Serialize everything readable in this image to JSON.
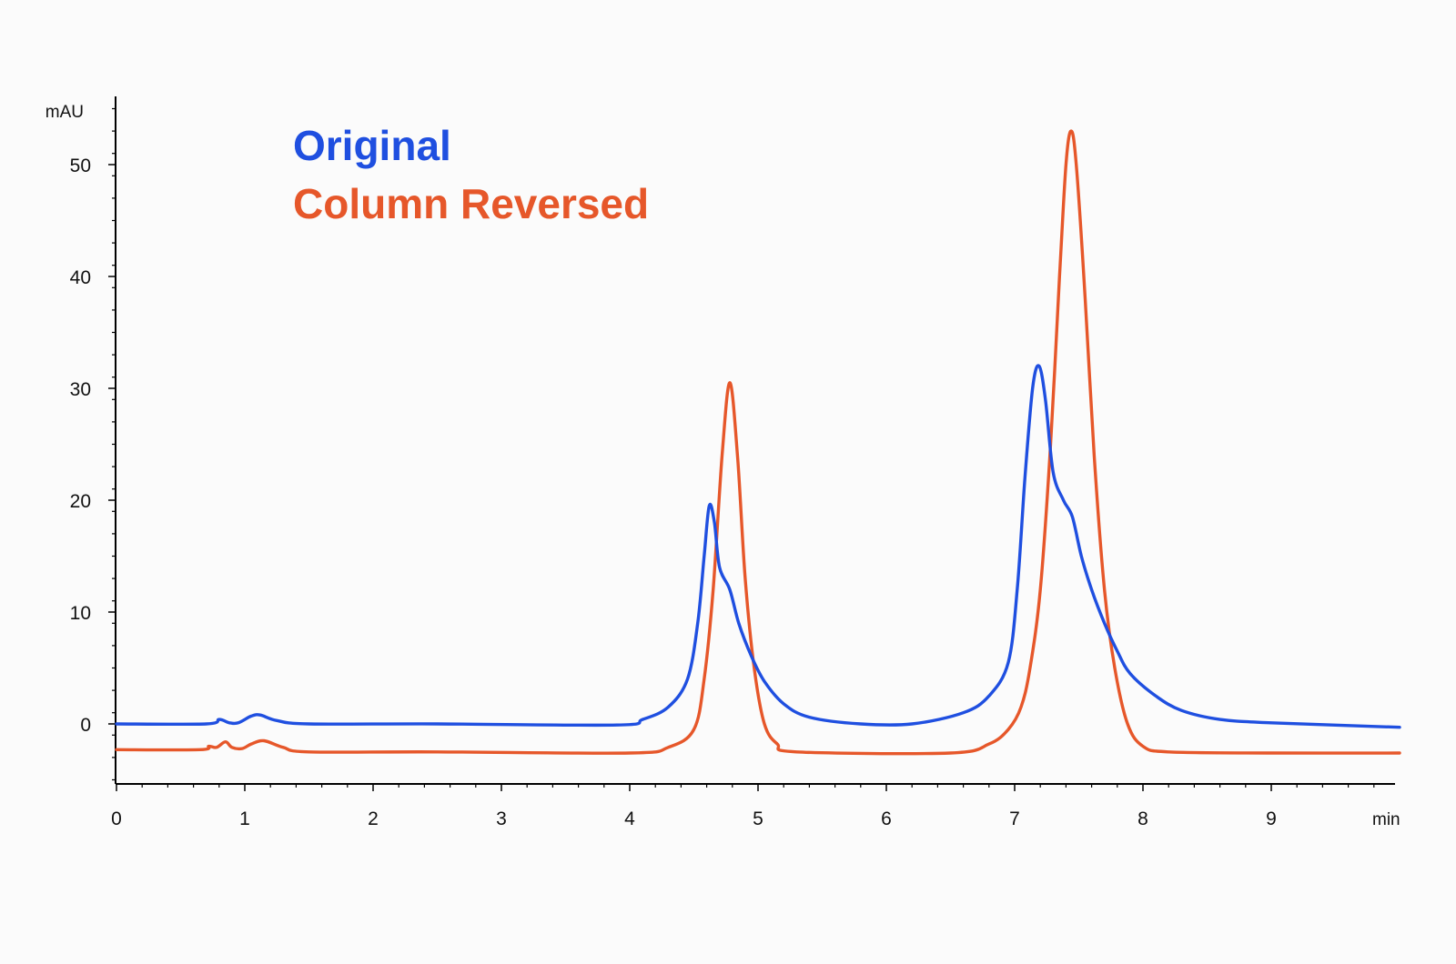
{
  "chart_data": {
    "type": "line",
    "title": "",
    "xlabel": "min",
    "ylabel": "mAU",
    "xlim": [
      0,
      10
    ],
    "ylim": [
      -5.5,
      56
    ],
    "x_ticks": [
      0,
      1,
      2,
      3,
      4,
      5,
      6,
      7,
      8,
      9
    ],
    "y_ticks": [
      0,
      10,
      20,
      30,
      40,
      50
    ],
    "grid": false,
    "legend_placement": "top-left",
    "series": [
      {
        "name": "Original",
        "color": "#1f4fe0",
        "points": [
          [
            0,
            0
          ],
          [
            0.7,
            0
          ],
          [
            0.8,
            0.4
          ],
          [
            0.88,
            0.1
          ],
          [
            0.95,
            0.1
          ],
          [
            1.05,
            0.7
          ],
          [
            1.12,
            0.8
          ],
          [
            1.25,
            0.3
          ],
          [
            1.5,
            0
          ],
          [
            2.5,
            0
          ],
          [
            3.9,
            -0.1
          ],
          [
            4.1,
            0.4
          ],
          [
            4.3,
            1.5
          ],
          [
            4.45,
            4
          ],
          [
            4.53,
            9
          ],
          [
            4.58,
            15
          ],
          [
            4.62,
            19.5
          ],
          [
            4.66,
            18
          ],
          [
            4.7,
            14
          ],
          [
            4.78,
            12
          ],
          [
            4.85,
            9
          ],
          [
            4.95,
            6
          ],
          [
            5.05,
            3.8
          ],
          [
            5.2,
            1.8
          ],
          [
            5.4,
            0.6
          ],
          [
            5.8,
            0
          ],
          [
            6.2,
            0
          ],
          [
            6.6,
            1
          ],
          [
            6.8,
            2.5
          ],
          [
            6.95,
            5.5
          ],
          [
            7.02,
            12
          ],
          [
            7.08,
            22
          ],
          [
            7.14,
            30
          ],
          [
            7.19,
            32
          ],
          [
            7.24,
            29
          ],
          [
            7.3,
            22.5
          ],
          [
            7.38,
            20
          ],
          [
            7.45,
            18.5
          ],
          [
            7.52,
            15
          ],
          [
            7.6,
            12
          ],
          [
            7.7,
            9
          ],
          [
            7.8,
            6.5
          ],
          [
            7.9,
            4.5
          ],
          [
            8.1,
            2.5
          ],
          [
            8.3,
            1.2
          ],
          [
            8.6,
            0.4
          ],
          [
            9,
            0.1
          ],
          [
            10,
            -0.3
          ]
        ]
      },
      {
        "name": "Column Reversed",
        "color": "#e6572a",
        "points": [
          [
            0,
            -2.3
          ],
          [
            0.65,
            -2.3
          ],
          [
            0.72,
            -2.0
          ],
          [
            0.78,
            -2.1
          ],
          [
            0.85,
            -1.6
          ],
          [
            0.9,
            -2.1
          ],
          [
            0.98,
            -2.2
          ],
          [
            1.05,
            -1.8
          ],
          [
            1.15,
            -1.5
          ],
          [
            1.3,
            -2.1
          ],
          [
            1.5,
            -2.5
          ],
          [
            2.5,
            -2.5
          ],
          [
            4.0,
            -2.6
          ],
          [
            4.3,
            -2.1
          ],
          [
            4.5,
            -0.5
          ],
          [
            4.58,
            4
          ],
          [
            4.65,
            12
          ],
          [
            4.72,
            24
          ],
          [
            4.78,
            30.5
          ],
          [
            4.84,
            24
          ],
          [
            4.9,
            13
          ],
          [
            4.97,
            5
          ],
          [
            5.05,
            0
          ],
          [
            5.15,
            -1.8
          ],
          [
            5.3,
            -2.5
          ],
          [
            6.5,
            -2.6
          ],
          [
            6.8,
            -1.8
          ],
          [
            6.95,
            -0.5
          ],
          [
            7.05,
            1.5
          ],
          [
            7.12,
            5
          ],
          [
            7.2,
            12
          ],
          [
            7.28,
            25
          ],
          [
            7.35,
            40
          ],
          [
            7.4,
            50
          ],
          [
            7.44,
            53
          ],
          [
            7.48,
            50
          ],
          [
            7.55,
            38
          ],
          [
            7.62,
            24
          ],
          [
            7.7,
            12
          ],
          [
            7.78,
            5
          ],
          [
            7.88,
            0
          ],
          [
            8.0,
            -2
          ],
          [
            8.2,
            -2.5
          ],
          [
            9,
            -2.6
          ],
          [
            10,
            -2.6
          ]
        ]
      }
    ]
  }
}
